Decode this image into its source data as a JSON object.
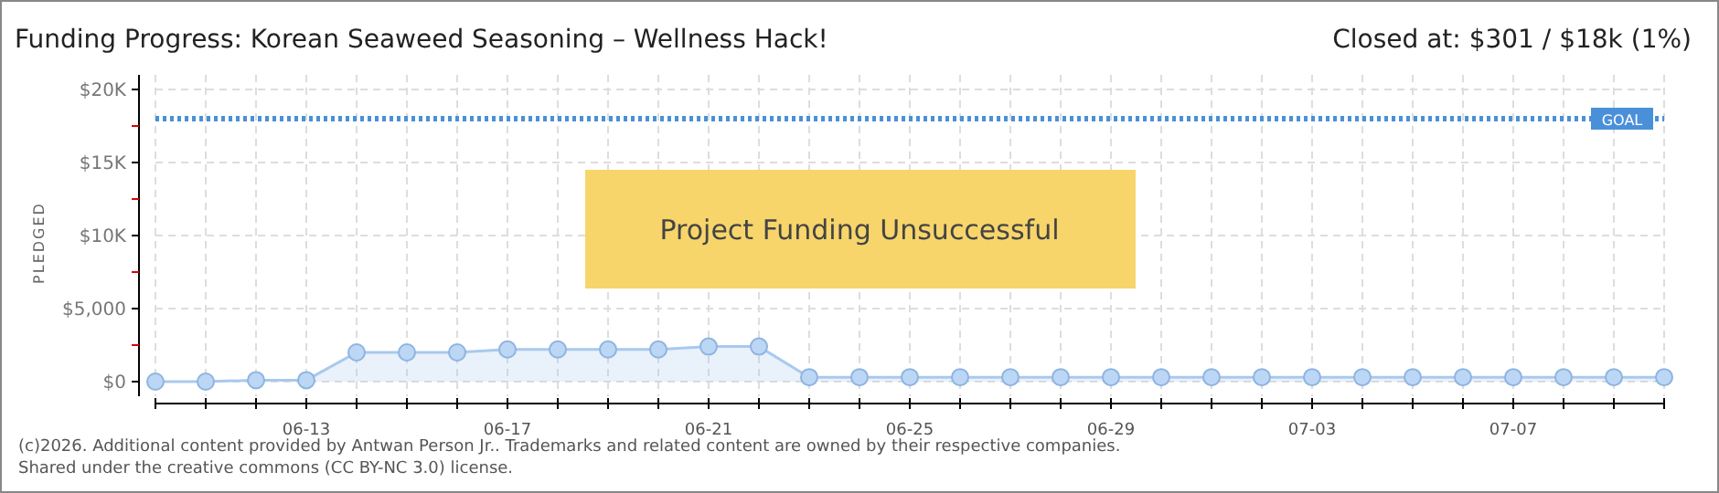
{
  "chart_data": {
    "type": "area",
    "title": "Funding Progress: Korean Seaweed Seasoning – Wellness Hack!",
    "ylabel": "PLEDGED",
    "categories": [
      null,
      null,
      null,
      "06-13",
      null,
      null,
      null,
      "06-17",
      null,
      null,
      null,
      "06-21",
      null,
      null,
      null,
      "06-25",
      null,
      null,
      null,
      "06-29",
      null,
      null,
      null,
      "07-03",
      null,
      null,
      null,
      "07-07",
      null,
      null,
      null
    ],
    "series": [
      {
        "color": "#a9c9ee",
        "values": [
          0,
          0,
          100,
          100,
          2000,
          2000,
          2000,
          2200,
          2200,
          2200,
          2200,
          2400,
          2400,
          301,
          301,
          301,
          301,
          301,
          301,
          301,
          301,
          301,
          301,
          301,
          301,
          301,
          301,
          301,
          301,
          301,
          301
        ]
      }
    ],
    "ylim": [
      -1000,
      20000
    ],
    "yticks": [
      {
        "value": 0,
        "label": "$0"
      },
      {
        "value": 2500,
        "label": null
      },
      {
        "value": 5000,
        "label": "$5,000"
      },
      {
        "value": 7500,
        "label": null
      },
      {
        "value": 10000,
        "label": "$10K"
      },
      {
        "value": 12500,
        "label": null
      },
      {
        "value": 15000,
        "label": "$15K"
      },
      {
        "value": 17500,
        "label": null
      },
      {
        "value": 20000,
        "label": "$20K"
      }
    ],
    "ref_lines": [
      {
        "axis": "y",
        "value": 18000,
        "label": "GOAL",
        "color": "#4a90d9",
        "line_style": "dotted"
      }
    ],
    "grid": true,
    "marker": "circle",
    "annotations": [
      "Closed at: $301 / $18k (1%)",
      "Project Funding Unsuccessful",
      "(c)2026. Additional content provided by Antwan Person Jr.. Trademarks and related content are owned by their respective companies.",
      "Shared under the creative commons (CC BY-NC 3.0) license."
    ]
  }
}
